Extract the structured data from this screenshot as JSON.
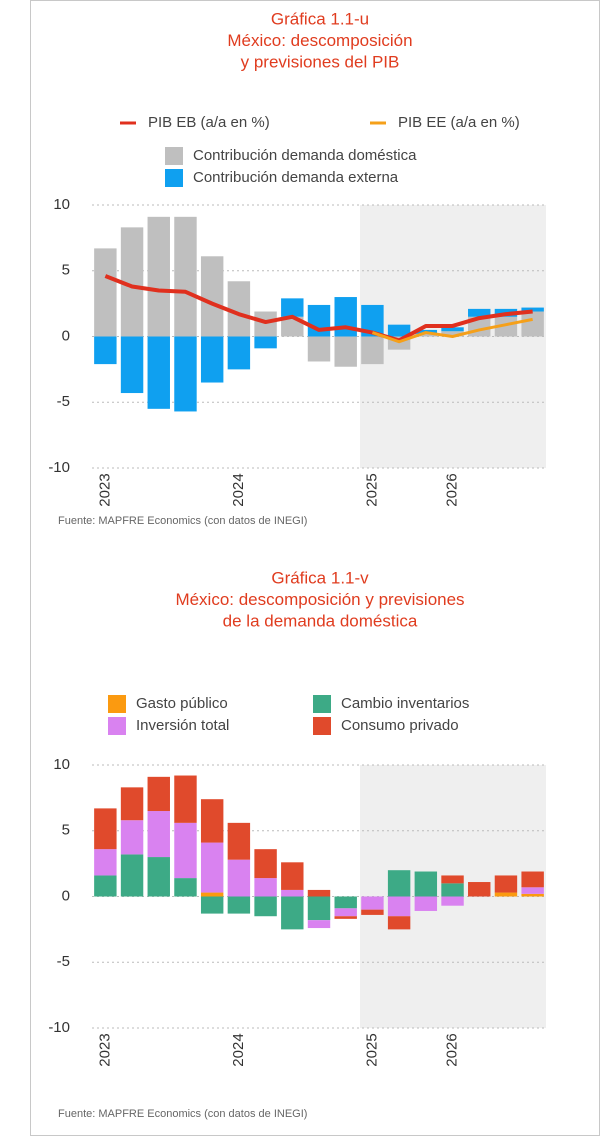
{
  "chart_data": [
    {
      "type": "combo",
      "title": [
        "Gráfica 1.1-u",
        "México: descomposición",
        "y previsiones del PIB"
      ],
      "categories": [
        "2023",
        null,
        null,
        null,
        null,
        "2024",
        null,
        null,
        null,
        null,
        "2025",
        null,
        null,
        "2026",
        null,
        null,
        null
      ],
      "series": [
        {
          "name": "Contribución demanda doméstica",
          "type": "bar",
          "color": "#bfbfbf",
          "values": [
            6.7,
            8.3,
            9.1,
            9.1,
            6.1,
            4.2,
            1.9,
            1.5,
            -1.9,
            -2.3,
            -2.1,
            -1.0,
            0.2,
            0.4,
            1.5,
            1.5,
            1.9
          ]
        },
        {
          "name": "Contribución demanda externa",
          "type": "bar",
          "color": "#0fa0f0",
          "values": [
            -2.1,
            -4.3,
            -5.5,
            -5.7,
            -3.5,
            -2.5,
            -0.9,
            1.4,
            2.4,
            3.0,
            2.4,
            0.9,
            0.3,
            0.3,
            0.6,
            0.6,
            0.3
          ]
        },
        {
          "name": "PIB EB (a/a en %)",
          "type": "line",
          "color": "#e0301e",
          "values": [
            4.6,
            3.8,
            3.5,
            3.4,
            2.5,
            1.7,
            1.1,
            1.5,
            0.5,
            0.7,
            0.3,
            -0.3,
            0.8,
            0.8,
            1.4,
            1.7,
            1.9
          ]
        },
        {
          "name": "PIB EE (a/a en %)",
          "type": "line",
          "color": "#f5a01a",
          "values": [
            null,
            null,
            null,
            null,
            null,
            null,
            null,
            null,
            null,
            null,
            0.3,
            -0.4,
            0.3,
            0.0,
            0.5,
            0.9,
            1.3
          ]
        }
      ],
      "ylim": [
        -10,
        10
      ],
      "yticks": [
        -10,
        -5,
        0,
        5,
        10
      ],
      "grid": true,
      "source": "Fuente: MAPFRE Economics (con datos de INEGI)"
    },
    {
      "type": "bar",
      "title": [
        "Gráfica 1.1-v",
        "México: descomposición y previsiones",
        "de la demanda doméstica"
      ],
      "categories": [
        "2023",
        null,
        null,
        null,
        null,
        "2024",
        null,
        null,
        null,
        null,
        "2025",
        null,
        null,
        "2026",
        null,
        null,
        null
      ],
      "series": [
        {
          "name": "Cambio inventarios",
          "type": "bar",
          "color": "#3daa86",
          "values": [
            1.6,
            3.2,
            3.0,
            1.4,
            -1.3,
            -1.3,
            -1.5,
            -2.5,
            -1.8,
            -0.9,
            0,
            2.0,
            1.9,
            1.0,
            0,
            0,
            0
          ]
        },
        {
          "name": "Gasto público",
          "type": "bar",
          "color": "#fb9a10",
          "values": [
            0,
            0,
            0,
            0,
            0.3,
            0,
            0,
            0,
            0,
            0,
            0,
            0,
            0,
            0,
            0,
            0.3,
            0.2
          ]
        },
        {
          "name": "Inversión total",
          "type": "bar",
          "color": "#d982f0",
          "values": [
            2.0,
            2.6,
            3.5,
            4.2,
            3.8,
            2.8,
            1.4,
            0.5,
            -0.6,
            -0.6,
            -1.0,
            -1.5,
            -1.1,
            -0.7,
            0,
            0,
            0.5
          ]
        },
        {
          "name": "Consumo privado",
          "type": "bar",
          "color": "#e04a2c",
          "values": [
            3.1,
            2.5,
            2.6,
            3.6,
            3.3,
            2.8,
            2.2,
            2.1,
            0.5,
            -0.2,
            -0.4,
            -1.0,
            0,
            0.6,
            1.1,
            1.3,
            1.2
          ]
        }
      ],
      "ylim": [
        -10,
        10
      ],
      "yticks": [
        -10,
        -5,
        0,
        5,
        10
      ],
      "grid": true,
      "source": "Fuente: MAPFRE Economics (con datos de INEGI)"
    }
  ]
}
